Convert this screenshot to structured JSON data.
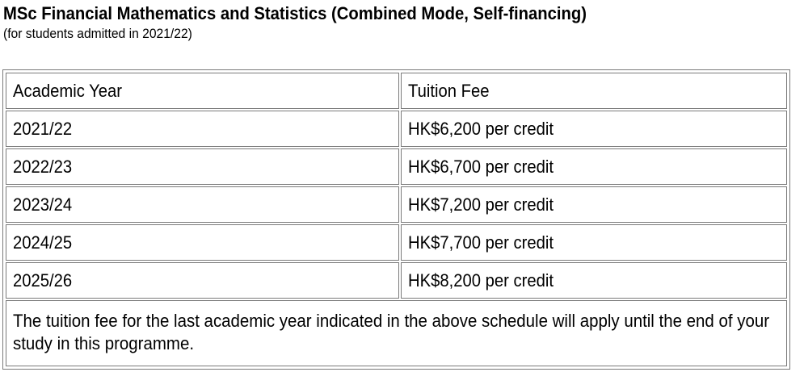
{
  "title": "MSc Financial Mathematics and Statistics (Combined Mode, Self-financing)",
  "subtitle": "(for students admitted in 2021/22)",
  "table": {
    "headers": {
      "year": "Academic Year",
      "fee": "Tuition Fee"
    },
    "rows": [
      {
        "year": "2021/22",
        "fee": "HK$6,200 per credit"
      },
      {
        "year": "2022/23",
        "fee": "HK$6,700 per credit"
      },
      {
        "year": "2023/24",
        "fee": "HK$7,200 per credit"
      },
      {
        "year": "2024/25",
        "fee": "HK$7,700 per credit"
      },
      {
        "year": "2025/26",
        "fee": "HK$8,200 per credit"
      }
    ],
    "note": "The tuition fee for the last academic year indicated in the above schedule will apply until the end of your study in this programme."
  }
}
